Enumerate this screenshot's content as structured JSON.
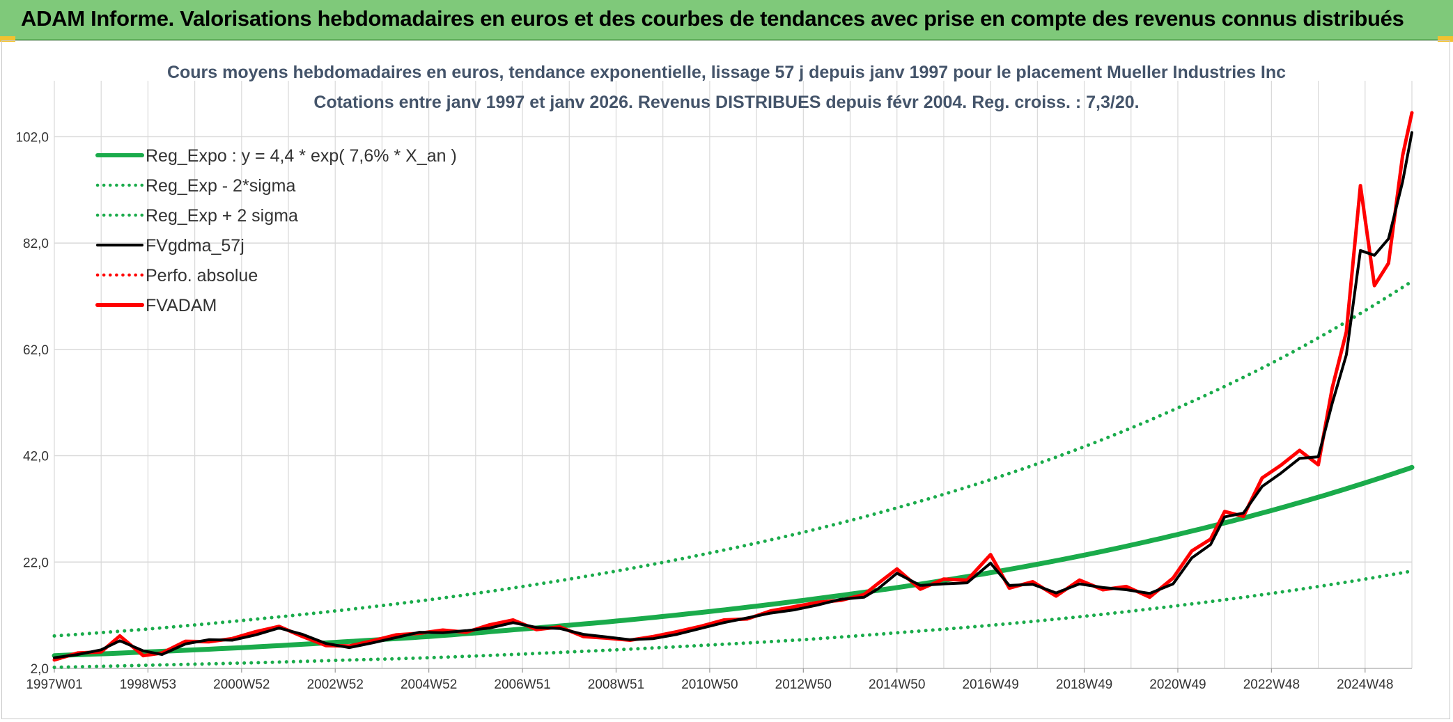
{
  "banner": {
    "title": "ADAM Informe. Valorisations hebdomadaires en euros et des courbes de tendances avec prise en compte des revenus connus distribués"
  },
  "colors": {
    "banner_bg": "#7fc97a",
    "regression": "#1aab4b",
    "smoothed": "#000000",
    "price": "#ff0000",
    "grid": "#d9d9d9"
  },
  "chart_data": {
    "type": "line",
    "title_line1": "Cours moyens hebdomadaires en euros, tendance exponentielle, lissage 57 j depuis janv 1997 pour le placement Mueller Industries Inc",
    "title_line2": "Cotations entre janv 1997 et janv 2026. Revenus DISTRIBUES depuis févr 2004. Reg. croiss. : 7,3/20.",
    "xlabel": "",
    "ylabel": "",
    "x_range": [
      1997.0,
      2026.0
    ],
    "ylim": [
      2.0,
      112.0
    ],
    "y_ticks": [
      {
        "value": 2.0,
        "label": "2,0"
      },
      {
        "value": 22.0,
        "label": "22,0"
      },
      {
        "value": 42.0,
        "label": "42,0"
      },
      {
        "value": 62.0,
        "label": "62,0"
      },
      {
        "value": 82.0,
        "label": "82,0"
      },
      {
        "value": 102.0,
        "label": "102,0"
      }
    ],
    "x_ticks": [
      {
        "year": 1997.0,
        "label": "1997W01"
      },
      {
        "year": 1999.0,
        "label": "1998W53"
      },
      {
        "year": 2001.0,
        "label": "2000W52"
      },
      {
        "year": 2003.0,
        "label": "2002W52"
      },
      {
        "year": 2005.0,
        "label": "2004W52"
      },
      {
        "year": 2007.0,
        "label": "2006W51"
      },
      {
        "year": 2009.0,
        "label": "2008W51"
      },
      {
        "year": 2011.0,
        "label": "2010W50"
      },
      {
        "year": 2013.0,
        "label": "2012W50"
      },
      {
        "year": 2015.0,
        "label": "2014W50"
      },
      {
        "year": 2017.0,
        "label": "2016W49"
      },
      {
        "year": 2019.0,
        "label": "2018W49"
      },
      {
        "year": 2021.0,
        "label": "2020W49"
      },
      {
        "year": 2023.0,
        "label": "2022W48"
      },
      {
        "year": 2025.0,
        "label": "2024W48"
      }
    ],
    "legend_position": "top-left",
    "legend": [
      {
        "key": "reg",
        "label": "Reg_Expo : y = 4,4 * exp( 7,6% *  X_an )",
        "style": "solid-thick",
        "color": "#1aab4b"
      },
      {
        "key": "low",
        "label": "Reg_Exp - 2*sigma",
        "style": "dotted",
        "color": "#1aab4b"
      },
      {
        "key": "high",
        "label": "Reg_Exp + 2 sigma",
        "style": "dotted",
        "color": "#1aab4b"
      },
      {
        "key": "smooth",
        "label": "FVgdma_57j",
        "style": "solid",
        "color": "#000000"
      },
      {
        "key": "perf",
        "label": "Perfo. absolue",
        "style": "dotted",
        "color": "#ff0000"
      },
      {
        "key": "price",
        "label": "FVADAM",
        "style": "solid-thick",
        "color": "#ff0000"
      }
    ],
    "series": [
      {
        "name": "Reg_Expo",
        "x": [
          1997,
          1999,
          2001,
          2003,
          2005,
          2007,
          2009,
          2011,
          2013,
          2015,
          2017,
          2019,
          2021,
          2023,
          2025,
          2026
        ],
        "values": [
          4.4,
          5.1,
          5.9,
          6.9,
          8.0,
          9.4,
          10.9,
          12.7,
          14.8,
          17.2,
          20.0,
          23.3,
          27.2,
          31.7,
          36.9,
          39.8
        ]
      },
      {
        "name": "Reg_Exp - 2*sigma",
        "x": [
          1997,
          1999,
          2001,
          2003,
          2005,
          2007,
          2009,
          2011,
          2013,
          2015,
          2017,
          2019,
          2021,
          2023,
          2025,
          2026
        ],
        "values": [
          2.2,
          2.6,
          3.0,
          3.5,
          4.0,
          4.7,
          5.5,
          6.4,
          7.4,
          8.7,
          10.1,
          11.8,
          13.8,
          16.1,
          18.8,
          20.3
        ]
      },
      {
        "name": "Reg_Exp + 2 sigma",
        "x": [
          1997,
          1999,
          2001,
          2003,
          2005,
          2007,
          2009,
          2011,
          2013,
          2015,
          2017,
          2019,
          2021,
          2023,
          2025,
          2026
        ],
        "values": [
          8.1,
          9.4,
          11.0,
          12.8,
          14.9,
          17.4,
          20.3,
          23.7,
          27.6,
          32.2,
          37.5,
          43.7,
          51.0,
          59.4,
          69.3,
          74.8
        ]
      },
      {
        "name": "FVgdma_57j",
        "x": [
          1997.0,
          1997.5,
          1998.0,
          1998.4,
          1998.9,
          1999.3,
          1999.8,
          2000.3,
          2000.8,
          2001.3,
          2001.8,
          2002.3,
          2002.8,
          2003.3,
          2003.8,
          2004.3,
          2004.8,
          2005.3,
          2005.8,
          2006.3,
          2006.8,
          2007.3,
          2007.8,
          2008.3,
          2008.8,
          2009.3,
          2009.8,
          2010.3,
          2010.8,
          2011.3,
          2011.8,
          2012.3,
          2012.8,
          2013.3,
          2013.8,
          2014.3,
          2014.6,
          2015.0,
          2015.5,
          2016.0,
          2016.5,
          2017.0,
          2017.4,
          2017.9,
          2018.4,
          2018.9,
          2019.4,
          2019.9,
          2020.4,
          2020.9,
          2021.3,
          2021.7,
          2022.0,
          2022.4,
          2022.8,
          2023.2,
          2023.6,
          2024.0,
          2024.3,
          2024.6,
          2024.9,
          2025.2,
          2025.5,
          2025.8,
          2026.0
        ],
        "values": [
          4.0,
          4.6,
          5.5,
          7.2,
          5.3,
          4.6,
          6.6,
          7.4,
          7.3,
          8.3,
          9.6,
          8.4,
          6.7,
          5.9,
          6.8,
          7.8,
          8.8,
          8.7,
          9.1,
          9.6,
          10.6,
          9.7,
          9.5,
          8.4,
          7.9,
          7.4,
          7.6,
          8.4,
          9.5,
          10.6,
          11.5,
          12.4,
          13.0,
          13.9,
          15.0,
          15.4,
          17.0,
          19.9,
          17.6,
          17.9,
          18.1,
          21.8,
          17.6,
          17.8,
          16.2,
          17.9,
          17.2,
          16.8,
          16.1,
          17.9,
          22.8,
          25.3,
          30.5,
          31.2,
          36.2,
          38.7,
          41.5,
          41.8,
          51.9,
          61.0,
          80.6,
          79.7,
          82.8,
          93.5,
          102.8
        ]
      },
      {
        "name": "FVADAM",
        "x": [
          1997.0,
          1997.5,
          1998.0,
          1998.4,
          1998.9,
          1999.3,
          1999.8,
          2000.3,
          2000.8,
          2001.3,
          2001.8,
          2002.3,
          2002.8,
          2003.3,
          2003.8,
          2004.3,
          2004.8,
          2005.3,
          2005.8,
          2006.3,
          2006.8,
          2007.3,
          2007.8,
          2008.3,
          2008.8,
          2009.3,
          2009.8,
          2010.3,
          2010.8,
          2011.3,
          2011.8,
          2012.3,
          2012.8,
          2013.3,
          2013.8,
          2014.3,
          2014.6,
          2015.0,
          2015.5,
          2016.0,
          2016.5,
          2017.0,
          2017.4,
          2017.9,
          2018.4,
          2018.9,
          2019.4,
          2019.9,
          2020.4,
          2020.9,
          2021.3,
          2021.7,
          2022.0,
          2022.4,
          2022.8,
          2023.2,
          2023.6,
          2024.0,
          2024.3,
          2024.6,
          2024.9,
          2025.2,
          2025.5,
          2025.8,
          2026.0
        ],
        "values": [
          3.6,
          4.9,
          5.1,
          8.1,
          4.4,
          4.9,
          7.1,
          7.0,
          7.6,
          8.9,
          9.9,
          8.0,
          6.3,
          6.2,
          7.2,
          8.3,
          8.6,
          9.2,
          8.8,
          10.2,
          11.1,
          9.3,
          9.8,
          8.0,
          7.7,
          7.3,
          8.0,
          8.9,
          9.9,
          11.1,
          11.3,
          12.8,
          13.6,
          14.4,
          14.8,
          15.9,
          18.0,
          20.7,
          16.9,
          18.8,
          18.6,
          23.4,
          17.1,
          18.3,
          15.6,
          18.6,
          16.8,
          17.4,
          15.4,
          19.0,
          24.1,
          26.3,
          31.5,
          30.6,
          37.8,
          40.2,
          43.0,
          40.3,
          54.8,
          65.3,
          92.8,
          74.0,
          78.2,
          98.4,
          106.5
        ]
      }
    ]
  }
}
